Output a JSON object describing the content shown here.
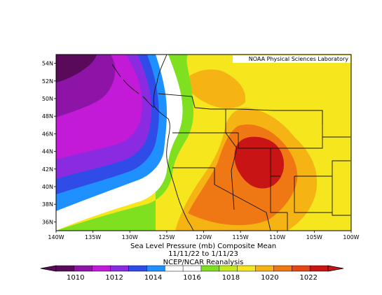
{
  "credit": "NOAA Physical Sciences Laboratory",
  "caption": {
    "line1": "Sea Level Pressure (mb) Composite Mean",
    "line2": "11/11/22  to 1/11/23",
    "line3": "NCEP/NCAR Reanalysis"
  },
  "map": {
    "lon_range": [
      -140,
      -100
    ],
    "lat_range": [
      35,
      55
    ],
    "lon_ticks": [
      "140W",
      "135W",
      "130W",
      "125W",
      "120W",
      "115W",
      "110W",
      "105W",
      "100W"
    ],
    "lat_ticks": [
      "54N",
      "52N",
      "50N",
      "48N",
      "46N",
      "44N",
      "42N",
      "40N",
      "38N",
      "36N"
    ]
  },
  "colorbar": {
    "labels": [
      "1010",
      "1012",
      "1014",
      "1016",
      "1018",
      "1020",
      "1022"
    ],
    "colors": [
      "#5a0a5a",
      "#8e14a8",
      "#c21ad6",
      "#8a2be2",
      "#2f4be8",
      "#1e90ff",
      "#ffffff",
      "#ffffff",
      "#7ee01e",
      "#c8e81e",
      "#f5e61e",
      "#f5b414",
      "#f07814",
      "#e64614",
      "#c81414"
    ]
  },
  "colors": {
    "c1010": "#5a0a5a",
    "c1012": "#c21ad6",
    "c1014": "#2f4be8",
    "c1016": "#ffffff",
    "c1018": "#7ee01e",
    "c1019": "#f5e61e",
    "c1020": "#f5b414",
    "c1021": "#f07814",
    "c1022": "#c81414"
  }
}
